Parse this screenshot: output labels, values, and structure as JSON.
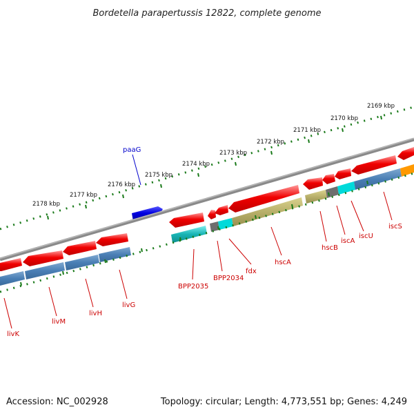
{
  "title": "Bordetella parapertussis 12822, complete genome",
  "footer": {
    "accession": "Accession: NC_002928",
    "topology": "Topology: circular; Length: 4,773,551 bp; Genes: 4,249"
  },
  "colors": {
    "forward_cds": "#e00000",
    "reverse_cds": "#e00000",
    "upper_gene": "#0000dd",
    "backbone": "#8a8a8a",
    "ticks": "#1a7a1a",
    "label_red": "#cc0000",
    "label_blue": "#0000cc",
    "cog_blue": "#4a7fb5",
    "cog_cyan": "#00dada",
    "cog_teal": "#18b4b4",
    "cog_olive": "#b8b06a",
    "cog_gray": "#6e6e6e",
    "cog_orange": "#ff9900"
  },
  "kbp_ticks": [
    "2178 kbp",
    "2177 kbp",
    "2176 kbp",
    "2175 kbp",
    "2174 kbp",
    "2173 kbp",
    "2172 kbp",
    "2171 kbp",
    "2170 kbp",
    "2169 kbp"
  ],
  "gene_labels": [
    "paaG",
    "livK",
    "livM",
    "livH",
    "livG",
    "BPP2035",
    "BPP2034",
    "fdx",
    "hscA",
    "hscB",
    "iscA",
    "iscU",
    "iscS"
  ]
}
